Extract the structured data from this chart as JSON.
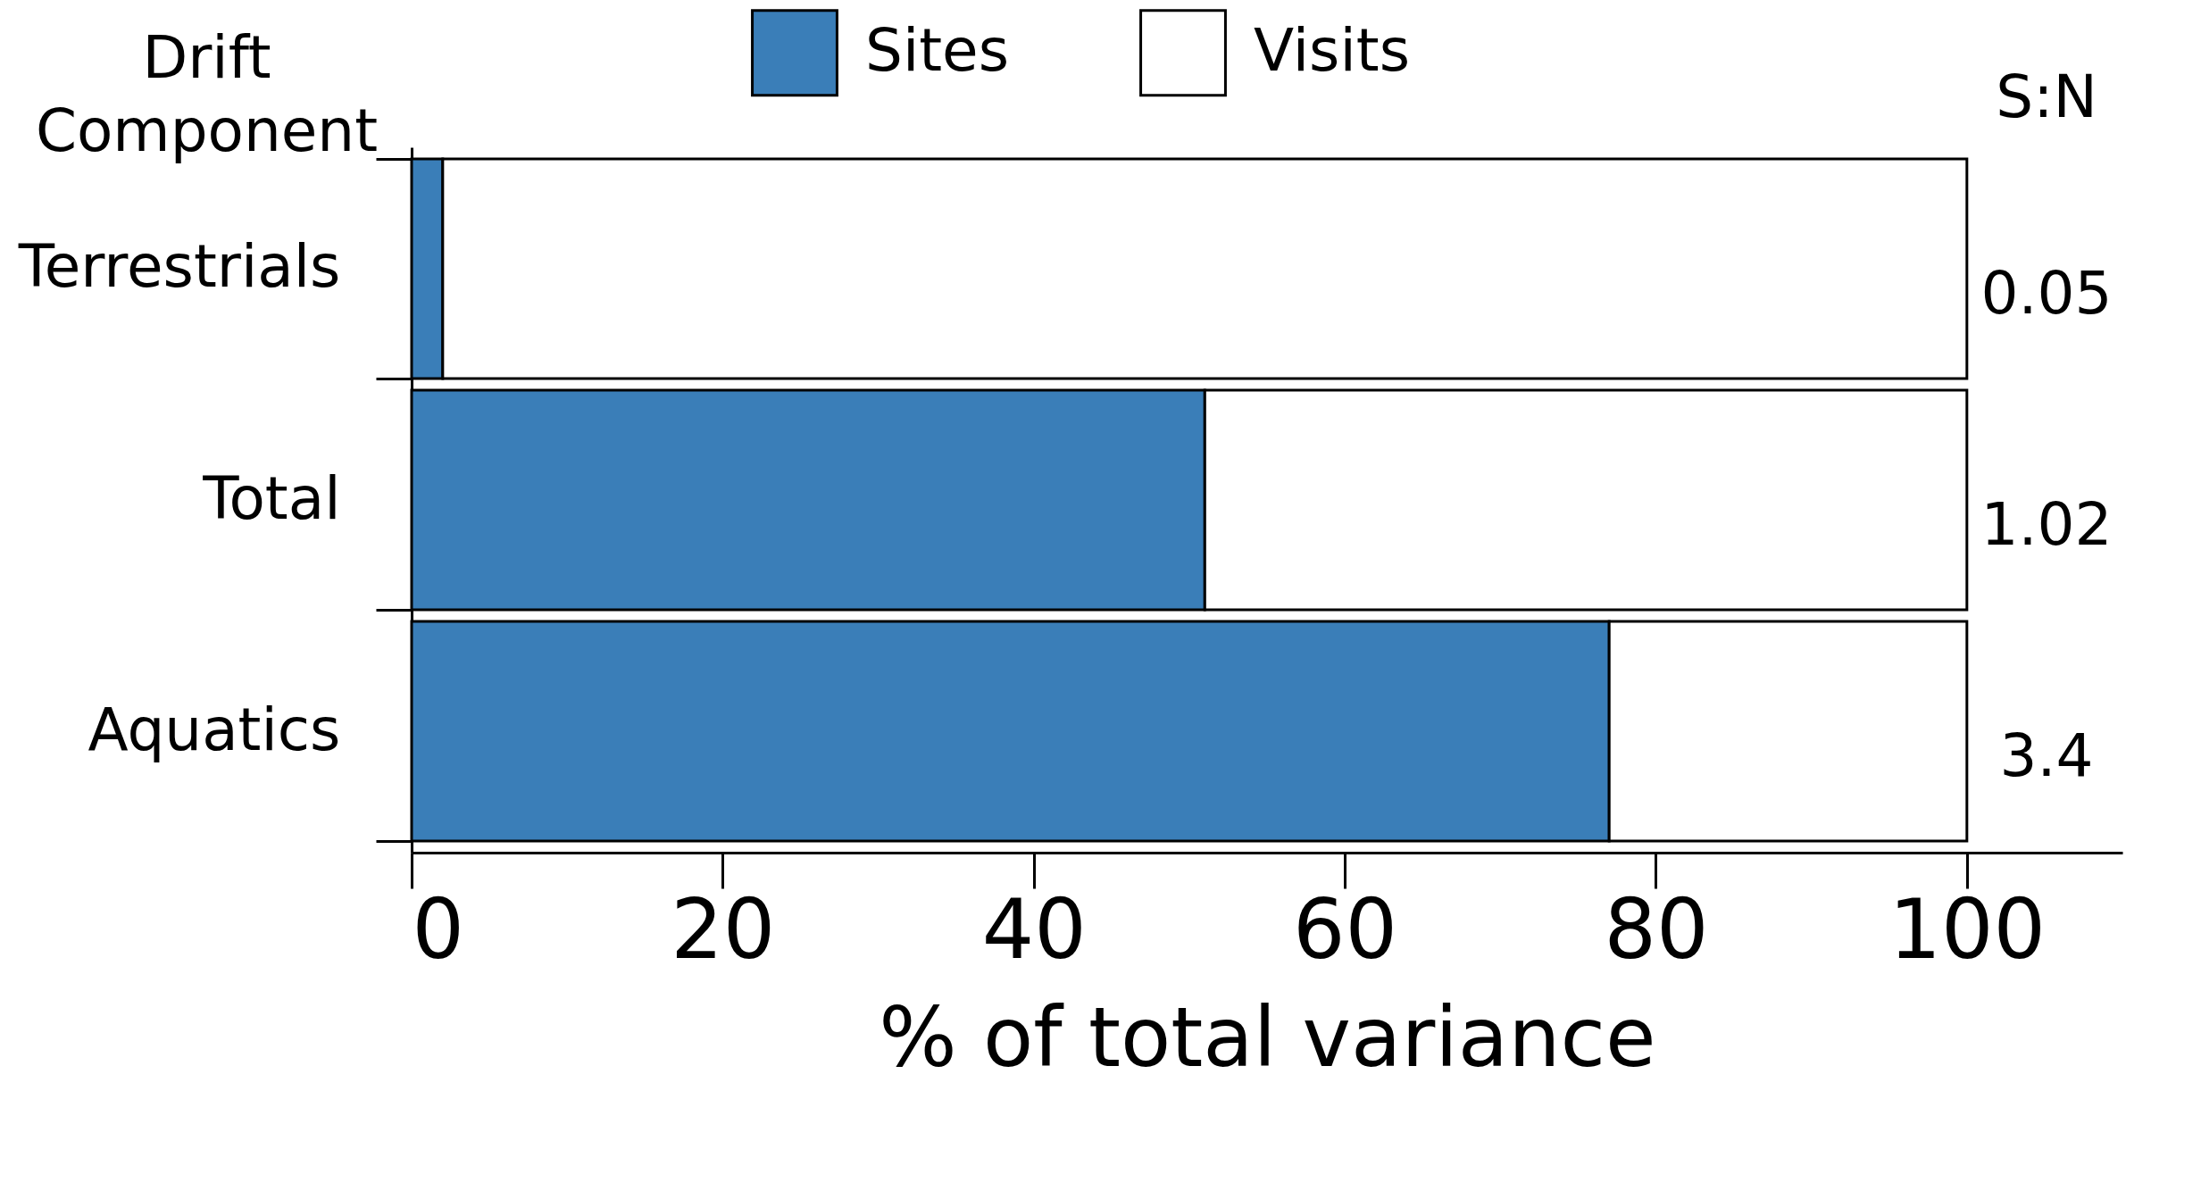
{
  "chart_data": {
    "type": "bar",
    "orientation": "horizontal",
    "stacked": true,
    "xlabel": "% of total variance",
    "ylabel": "Drift Component",
    "categories": [
      "Terrestrials",
      "Total",
      "Aquatics"
    ],
    "series": [
      {
        "name": "Sites",
        "color": "#3a7eb8",
        "values": [
          2,
          51,
          77
        ]
      },
      {
        "name": "Visits",
        "color": "#ffffff",
        "values": [
          98,
          49,
          23
        ]
      }
    ],
    "xlim": [
      0,
      110
    ],
    "xticks": [
      0,
      20,
      40,
      60,
      80,
      100
    ],
    "legend": "top",
    "annotations": [
      "S:N",
      "0.05",
      "1.02",
      "3.4"
    ]
  }
}
